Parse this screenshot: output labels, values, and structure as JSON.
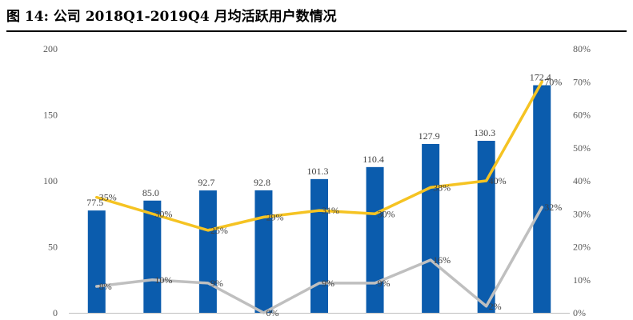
{
  "figure": {
    "title": "图 14: 公司 2018Q1-2019Q4 月均活跃用户数情况"
  },
  "colors": {
    "bar": "#0B5CAD",
    "line_yellow": "#F5C322",
    "line_gray": "#BFBFBF",
    "axis": "#BFBFBF",
    "title_rule": "#000000"
  },
  "chart_data": {
    "type": "bar",
    "title": "",
    "xlabel": "",
    "ylabel": "",
    "categories": [
      "",
      "",
      "",
      "",
      "",
      "",
      "",
      "",
      ""
    ],
    "ylim": [
      0,
      200
    ],
    "y_ticks": [
      "200",
      "150",
      "100",
      "50",
      "0"
    ],
    "y2lim": [
      0,
      80
    ],
    "y2_ticks": [
      "80%",
      "70%",
      "60%",
      "50%",
      "40%",
      "30%",
      "20%",
      "10%",
      "0%"
    ],
    "grid": false,
    "legend": "none",
    "series": [
      {
        "kind": "bar",
        "axis": "left",
        "values": [
          77.5,
          85.0,
          92.7,
          92.8,
          101.3,
          110.4,
          127.9,
          130.3,
          172.4
        ],
        "labels": [
          "77.5",
          "85.0",
          "92.7",
          "92.8",
          "101.3",
          "110.4",
          "127.9",
          "130.3",
          "172.4"
        ]
      },
      {
        "kind": "line",
        "axis": "right",
        "color": "yellow",
        "values": [
          35,
          30,
          25,
          29,
          31,
          30,
          38,
          40,
          70
        ],
        "labels": [
          "35%",
          "30%",
          "25%",
          "29%",
          "31%",
          "30%",
          "38%",
          "40%",
          "70%"
        ]
      },
      {
        "kind": "line",
        "axis": "right",
        "color": "gray",
        "values": [
          8,
          10,
          9,
          0,
          9,
          9,
          16,
          2,
          32
        ],
        "labels": [
          "8%",
          "10%",
          "9%",
          "0%",
          "9%",
          "9%",
          "16%",
          "2%",
          "32%"
        ]
      }
    ]
  }
}
